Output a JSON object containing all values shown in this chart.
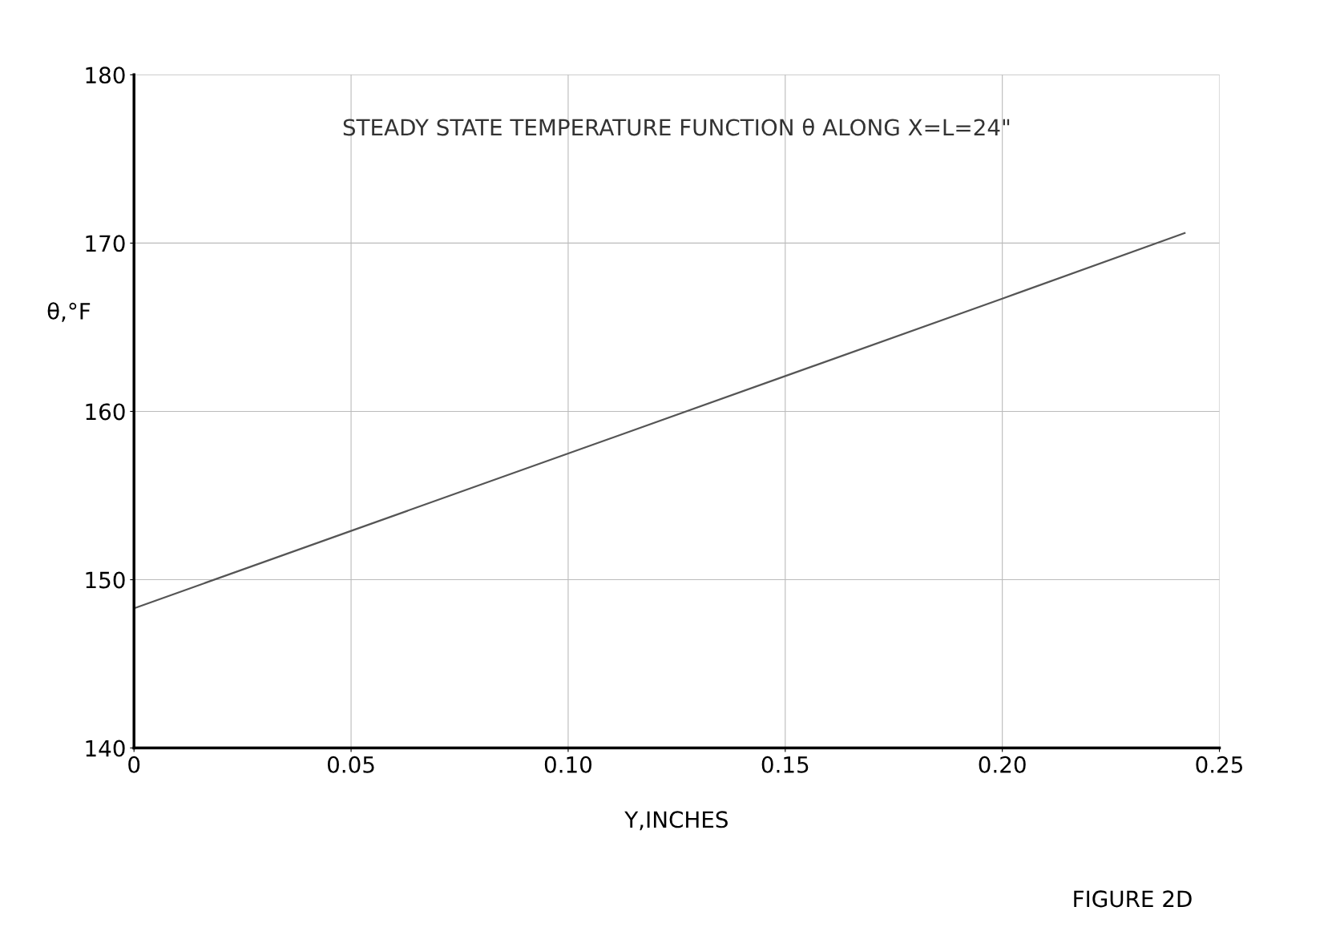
{
  "chart_data": {
    "type": "line",
    "title": "STEADY STATE TEMPERATURE FUNCTION θ ALONG X=L=24\"",
    "xlabel": "Y,INCHES",
    "ylabel": "θ,°F",
    "x": [
      0,
      0.05,
      0.1,
      0.15,
      0.2,
      0.242
    ],
    "series": [
      {
        "color": "#555555",
        "values": [
          148.3,
          152.9,
          157.5,
          162.1,
          166.7,
          170.6
        ]
      }
    ],
    "xlim": [
      0,
      0.25
    ],
    "ylim": [
      140,
      180
    ],
    "xticks": [
      0,
      {
        "value": 0.05,
        "label": "0.05"
      },
      {
        "value": 0.1,
        "label": "0.10"
      },
      {
        "value": 0.15,
        "label": "0.15"
      },
      {
        "value": 0.2,
        "label": "0.20"
      },
      0.25
    ],
    "yticks": [
      140,
      150,
      160,
      170,
      180
    ],
    "grid": true,
    "marker": "none",
    "line_style": "solid",
    "annotations": [
      "FIGURE 2D"
    ]
  }
}
